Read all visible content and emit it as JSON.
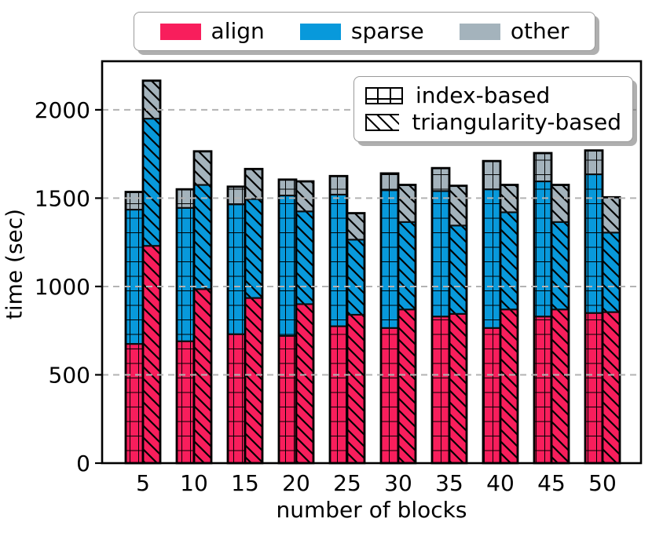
{
  "figure": {
    "top_legend": {
      "items": [
        {
          "label": "align",
          "color": "#F81E5C"
        },
        {
          "label": "sparse",
          "color": "#0899DB"
        },
        {
          "label": "other",
          "color": "#A4B3BC"
        }
      ]
    },
    "inner_legend": {
      "items": [
        {
          "label": "index-based",
          "hatch": "grid"
        },
        {
          "label": "triangularity-based",
          "hatch": "diagonal"
        }
      ]
    }
  },
  "chart_data": {
    "type": "bar",
    "stacked": true,
    "grouped": true,
    "title": "",
    "xlabel": "number of blocks",
    "ylabel": "time (sec)",
    "categories": [
      "5",
      "10",
      "15",
      "20",
      "25",
      "30",
      "35",
      "40",
      "45",
      "50"
    ],
    "yticks": [
      0,
      500,
      1000,
      1500,
      2000
    ],
    "ylim": [
      0,
      2275
    ],
    "grid": {
      "axis": "y",
      "style": "dashed",
      "color": "#b3b3b3",
      "above_bars": true
    },
    "stack_colors": {
      "align": "#F81E5C",
      "sparse": "#0899DB",
      "other": "#A4B3BC"
    },
    "bar_groups": [
      {
        "name": "index-based",
        "hatch": "grid",
        "series": [
          {
            "name": "align",
            "values": [
              675,
              690,
              730,
              720,
              775,
              765,
              830,
              765,
              830,
              850
            ]
          },
          {
            "name": "sparse",
            "values": [
              760,
              755,
              735,
              795,
              745,
              780,
              710,
              785,
              765,
              785
            ]
          },
          {
            "name": "other",
            "values": [
              100,
              105,
              100,
              90,
              105,
              95,
              130,
              160,
              160,
              135
            ]
          }
        ]
      },
      {
        "name": "triangularity-based",
        "hatch": "diagonal",
        "series": [
          {
            "name": "align",
            "values": [
              1230,
              985,
              935,
              900,
              840,
              870,
              845,
              870,
              870,
              855
            ]
          },
          {
            "name": "sparse",
            "values": [
              720,
              590,
              560,
              525,
              425,
              495,
              500,
              550,
              495,
              450
            ]
          },
          {
            "name": "other",
            "values": [
              215,
              190,
              170,
              170,
              150,
              210,
              225,
              155,
              210,
              200
            ]
          }
        ]
      }
    ]
  }
}
